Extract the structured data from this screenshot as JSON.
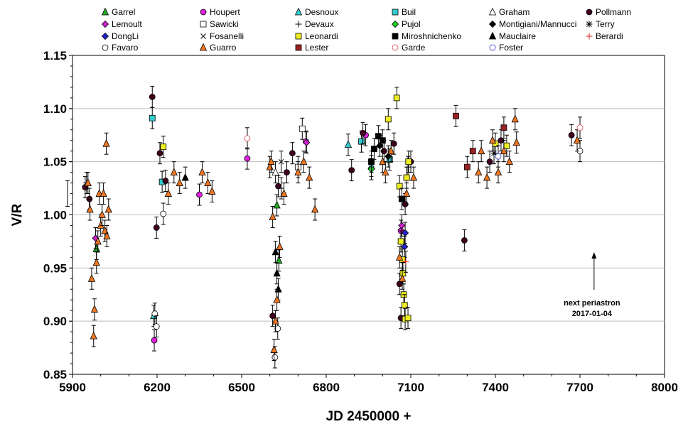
{
  "chart_data": {
    "type": "scatter",
    "title": "",
    "xlabel": "JD 2450000 +",
    "ylabel": "V/R",
    "xlim": [
      5900,
      8000
    ],
    "ylim": [
      0.85,
      1.15
    ],
    "x_ticks": [
      "5900",
      "6200",
      "6500",
      "6800",
      "7100",
      "7400",
      "7700",
      "8000"
    ],
    "y_ticks": [
      "0.85",
      "0.90",
      "0.95",
      "1.00",
      "1.05",
      "1.10",
      "1.15"
    ],
    "legend_position": "top",
    "annotation": {
      "line1": "next periastron",
      "line2": "2017-01-04",
      "x": 7750
    },
    "series": [
      {
        "name": "Garrel",
        "marker": "triangle",
        "color": "#22aa22",
        "points": [
          [
            5985,
            0.968
          ],
          [
            6625,
            1.009
          ],
          [
            6632,
            0.957
          ]
        ]
      },
      {
        "name": "Houpert",
        "marker": "circle",
        "color": "#dd22dd",
        "points": [
          [
            6190,
            0.882
          ],
          [
            6350,
            1.019
          ],
          [
            6520,
            1.053
          ],
          [
            6728,
            1.069
          ],
          [
            6940,
            1.075
          ],
          [
            7065,
            0.985
          ]
        ]
      },
      {
        "name": "Desnoux",
        "marker": "triangle",
        "color": "#33cccc",
        "points": [
          [
            6188,
            0.905
          ],
          [
            6878,
            1.066
          ],
          [
            6960,
            1.046
          ]
        ]
      },
      {
        "name": "Buil",
        "marker": "square",
        "color": "#33cccc",
        "points": [
          [
            6183,
            1.091
          ],
          [
            6218,
            1.031
          ],
          [
            6925,
            1.069
          ],
          [
            7025,
            1.052
          ]
        ]
      },
      {
        "name": "Graham",
        "marker": "triangle-open",
        "color": "#000000",
        "points": [
          [
            6620,
            1.04
          ]
        ]
      },
      {
        "name": "Pollmann",
        "marker": "circle-dark",
        "color": "#400020",
        "points": [
          [
            5945,
            1.026
          ],
          [
            5960,
            1.015
          ],
          [
            6183,
            1.111
          ],
          [
            6198,
            0.988
          ],
          [
            6210,
            1.058
          ],
          [
            6230,
            1.032
          ],
          [
            6610,
            0.905
          ],
          [
            6630,
            1.027
          ],
          [
            6660,
            1.04
          ],
          [
            6680,
            1.058
          ],
          [
            6890,
            1.042
          ],
          [
            6930,
            1.077
          ],
          [
            7005,
            1.06
          ],
          [
            7040,
            1.067
          ],
          [
            7060,
            0.935
          ],
          [
            7065,
            0.903
          ],
          [
            7080,
            1.01
          ],
          [
            7100,
            1.05
          ],
          [
            7290,
            0.976
          ],
          [
            7380,
            1.05
          ],
          [
            7420,
            1.07
          ],
          [
            7670,
            1.075
          ]
        ]
      },
      {
        "name": "Lemoult",
        "marker": "diamond",
        "color": "#cc22cc",
        "points": [
          [
            5982,
            0.978
          ],
          [
            6730,
            1.068
          ],
          [
            7068,
            0.99
          ]
        ]
      },
      {
        "name": "Sawicki",
        "marker": "square-open",
        "color": "#000000",
        "points": [
          [
            6700,
            1.045
          ],
          [
            6715,
            1.081
          ]
        ]
      },
      {
        "name": "Devaux",
        "marker": "plus",
        "color": "#000000",
        "points": [
          [
            5950,
            1.03
          ],
          [
            6640,
            1.025
          ],
          [
            7090,
            1.045
          ]
        ]
      },
      {
        "name": "Pujol",
        "marker": "diamond",
        "color": "#22cc22",
        "points": [
          [
            6960,
            1.043
          ]
        ]
      },
      {
        "name": "Montigiani/Mannucci",
        "marker": "diamond-dark",
        "color": "#000000",
        "points": [
          [
            6990,
            1.065
          ],
          [
            7020,
            1.055
          ]
        ]
      },
      {
        "name": "Terry",
        "marker": "star",
        "color": "#000000",
        "points": [
          [
            7395,
            1.058
          ]
        ]
      },
      {
        "name": "DongLi",
        "marker": "diamond",
        "color": "#2222cc",
        "points": [
          [
            7078,
            0.97
          ],
          [
            7080,
            0.983
          ]
        ]
      },
      {
        "name": "Fosanelli",
        "marker": "cross",
        "color": "#000000",
        "points": [
          [
            6640,
            1.05
          ]
        ]
      },
      {
        "name": "Leonardi",
        "marker": "square",
        "color": "#eeee22",
        "points": [
          [
            6222,
            1.064
          ],
          [
            7020,
            1.09
          ],
          [
            7050,
            1.11
          ],
          [
            7060,
            1.027
          ],
          [
            7065,
            0.975
          ],
          [
            7070,
            0.958
          ],
          [
            7072,
            0.945
          ],
          [
            7075,
            0.925
          ],
          [
            7078,
            0.915
          ],
          [
            7080,
            0.902
          ],
          [
            7090,
            0.903
          ],
          [
            7085,
            1.035
          ],
          [
            7092,
            1.05
          ],
          [
            7400,
            1.067
          ],
          [
            7440,
            1.065
          ]
        ]
      },
      {
        "name": "Miroshnichenko",
        "marker": "square-dark",
        "color": "#000000",
        "points": [
          [
            6960,
            1.05
          ],
          [
            6970,
            1.062
          ],
          [
            6985,
            1.074
          ],
          [
            7000,
            1.07
          ],
          [
            7068,
            1.015
          ]
        ]
      },
      {
        "name": "Mauclaire",
        "marker": "triangle-dark",
        "color": "#000000",
        "points": [
          [
            6300,
            1.035
          ],
          [
            6620,
            0.965
          ],
          [
            6625,
            0.945
          ],
          [
            6630,
            0.93
          ]
        ]
      },
      {
        "name": "Berardi",
        "marker": "plus-red",
        "color": "#dd2222",
        "points": [
          [
            7082,
            0.956
          ]
        ]
      },
      {
        "name": "Favaro",
        "marker": "circle-open",
        "color": "#000000",
        "points": [
          [
            6192,
            0.907
          ],
          [
            6198,
            0.895
          ],
          [
            6222,
            1.001
          ],
          [
            6618,
            0.866
          ],
          [
            6628,
            0.893
          ],
          [
            7700,
            1.06
          ]
        ]
      },
      {
        "name": "Guarro",
        "marker": "triangle",
        "color": "#ee7722",
        "points": [
          [
            5955,
            1.03
          ],
          [
            5962,
            1.005
          ],
          [
            5968,
            0.94
          ],
          [
            5975,
            0.886
          ],
          [
            5978,
            0.911
          ],
          [
            5985,
            0.955
          ],
          [
            5990,
            0.975
          ],
          [
            5995,
            1.02
          ],
          [
            6000,
            0.99
          ],
          [
            6005,
            1.0
          ],
          [
            6010,
            1.02
          ],
          [
            6015,
            0.985
          ],
          [
            6020,
            1.067
          ],
          [
            6022,
            0.98
          ],
          [
            6028,
            1.005
          ],
          [
            6240,
            1.02
          ],
          [
            6260,
            1.04
          ],
          [
            6280,
            1.03
          ],
          [
            6360,
            1.04
          ],
          [
            6380,
            1.03
          ],
          [
            6395,
            1.022
          ],
          [
            6600,
            1.045
          ],
          [
            6605,
            1.05
          ],
          [
            6610,
            0.998
          ],
          [
            6615,
            0.873
          ],
          [
            6620,
            0.9
          ],
          [
            6625,
            0.92
          ],
          [
            6635,
            0.97
          ],
          [
            6650,
            1.02
          ],
          [
            6700,
            1.04
          ],
          [
            6720,
            1.05
          ],
          [
            6740,
            1.035
          ],
          [
            6760,
            1.005
          ],
          [
            7000,
            1.05
          ],
          [
            7010,
            1.04
          ],
          [
            7030,
            1.06
          ],
          [
            7060,
            0.96
          ],
          [
            7070,
            0.94
          ],
          [
            7085,
            1.02
          ],
          [
            7110,
            1.035
          ],
          [
            7340,
            1.04
          ],
          [
            7350,
            1.06
          ],
          [
            7370,
            1.035
          ],
          [
            7390,
            1.07
          ],
          [
            7410,
            1.04
          ],
          [
            7430,
            1.06
          ],
          [
            7450,
            1.05
          ],
          [
            7470,
            1.09
          ],
          [
            7475,
            1.068
          ],
          [
            7690,
            1.07
          ]
        ]
      },
      {
        "name": "Lester",
        "marker": "square",
        "color": "#992222",
        "points": [
          [
            7260,
            1.093
          ],
          [
            7300,
            1.045
          ],
          [
            7320,
            1.06
          ],
          [
            7430,
            1.082
          ]
        ]
      },
      {
        "name": "Garde",
        "marker": "circle-open",
        "color": "#dd4444",
        "points": [
          [
            6520,
            1.072
          ],
          [
            7700,
            1.082
          ]
        ]
      },
      {
        "name": "Foster",
        "marker": "circle-open",
        "color": "#3333cc",
        "points": [
          [
            7410,
            1.055
          ]
        ]
      }
    ]
  },
  "legend_entries": [
    "Garrel",
    "Houpert",
    "Desnoux",
    "Buil",
    "Graham",
    "Pollmann",
    "Lemoult",
    "Sawicki",
    "Devaux",
    "Pujol",
    "Montigiani/Mannucci",
    "Terry",
    "DongLi",
    "Fosanelli",
    "Leonardi",
    "Miroshnichenko",
    "Mauclaire",
    "Berardi",
    "Favaro",
    "Guarro",
    "Lester",
    "Garde",
    "Foster"
  ]
}
